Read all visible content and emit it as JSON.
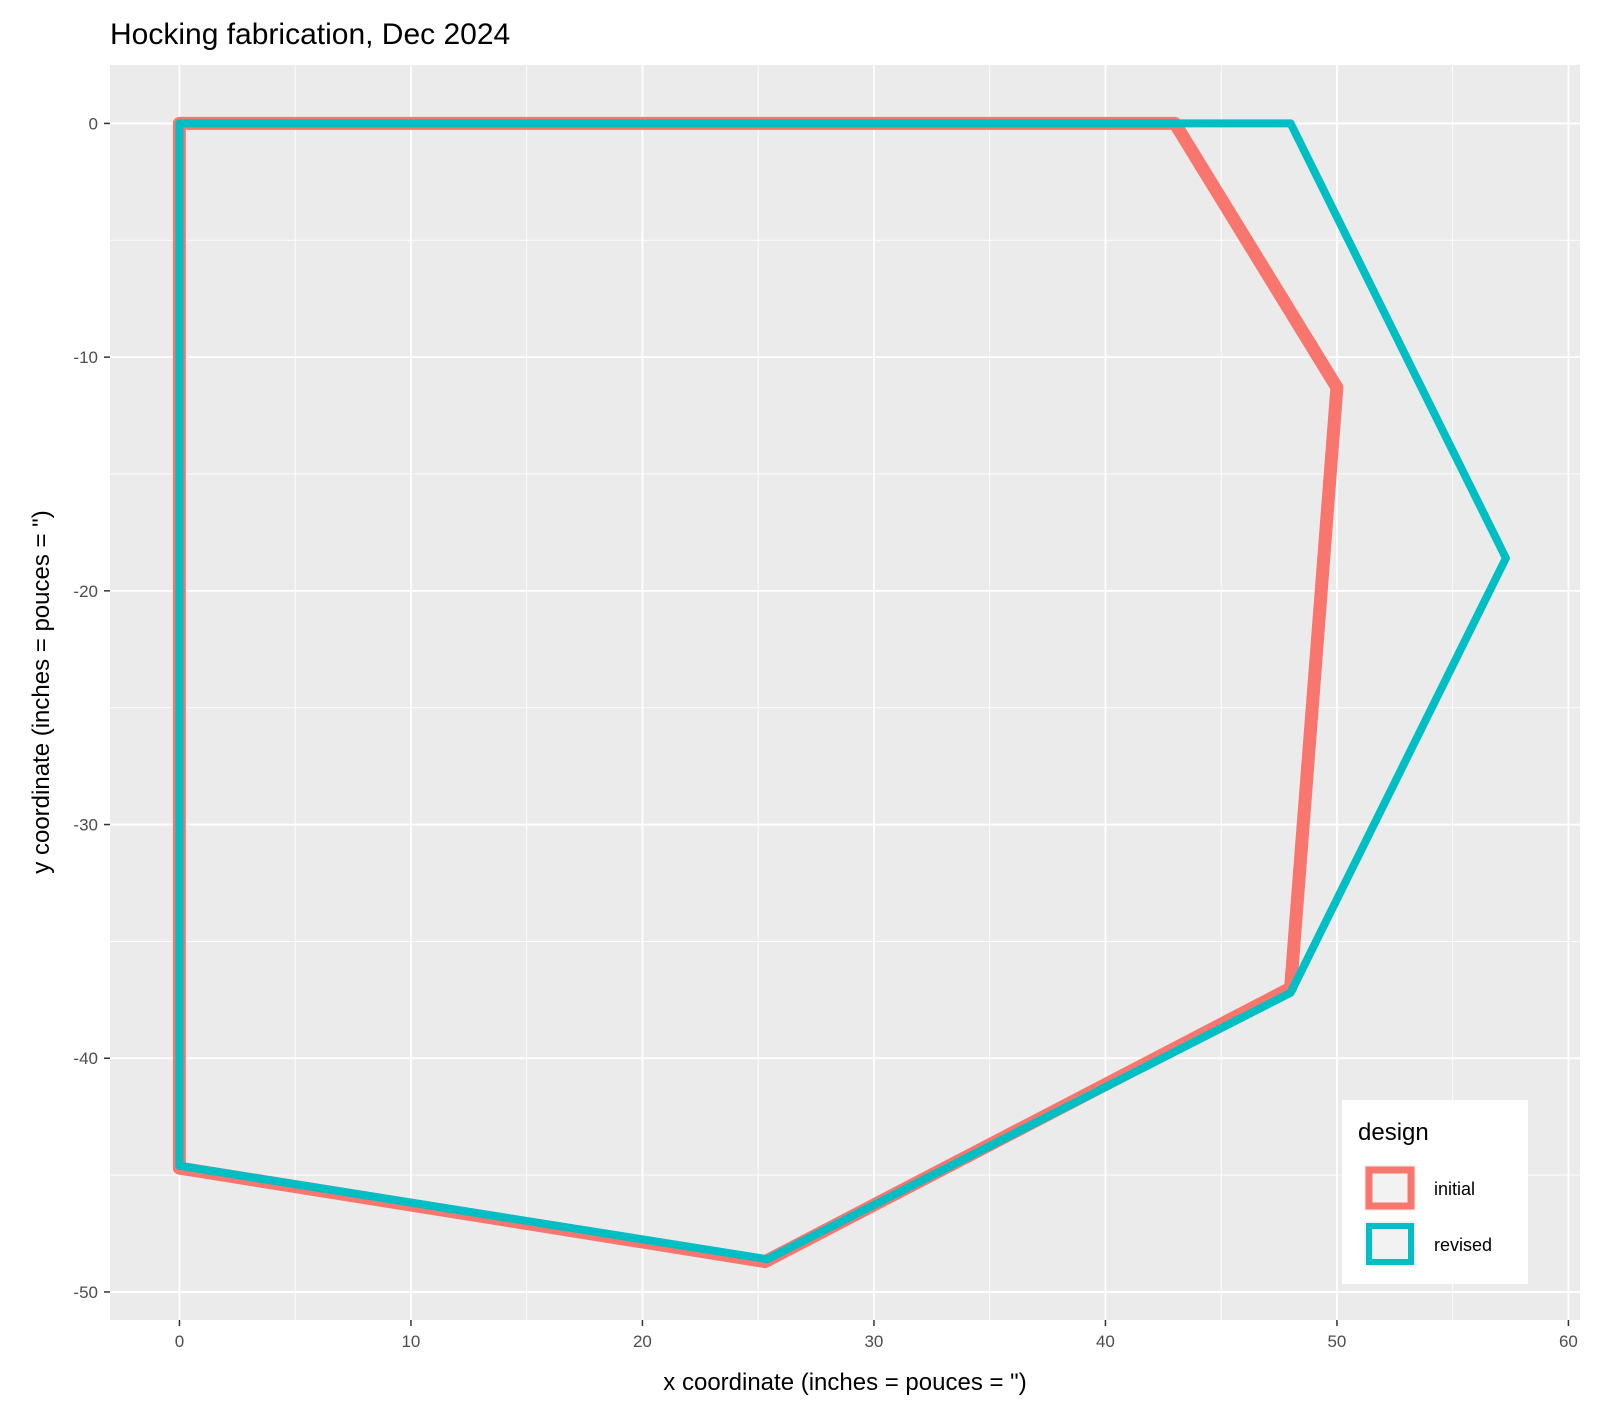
{
  "chart_data": {
    "type": "line",
    "title": "Hocking fabrication, Dec 2024",
    "xlabel": "x coordinate (inches = pouces = \")",
    "ylabel": "y coordinate (inches = pouces = \")",
    "xlim": [
      -3,
      60.5
    ],
    "ylim": [
      -51.2,
      2.5
    ],
    "x_ticks": [
      0,
      10,
      20,
      30,
      40,
      50,
      60
    ],
    "y_ticks": [
      0,
      -10,
      -20,
      -30,
      -40,
      -50
    ],
    "grid": true,
    "legend": {
      "title": "design",
      "position": "bottom-right"
    },
    "series": [
      {
        "name": "initial",
        "color": "#F8766D",
        "closed": true,
        "points": [
          {
            "x": 0,
            "y": 0
          },
          {
            "x": 43,
            "y": 0
          },
          {
            "x": 50,
            "y": -11.3
          },
          {
            "x": 48,
            "y": -37
          },
          {
            "x": 25.3,
            "y": -48.7
          },
          {
            "x": 0,
            "y": -44.7
          }
        ]
      },
      {
        "name": "revised",
        "color": "#00BFC4",
        "closed": true,
        "points": [
          {
            "x": 0,
            "y": 0
          },
          {
            "x": 48,
            "y": 0
          },
          {
            "x": 57.3,
            "y": -18.6
          },
          {
            "x": 48,
            "y": -37.2
          },
          {
            "x": 25.4,
            "y": -48.6
          },
          {
            "x": 0,
            "y": -44.6
          }
        ]
      }
    ]
  }
}
